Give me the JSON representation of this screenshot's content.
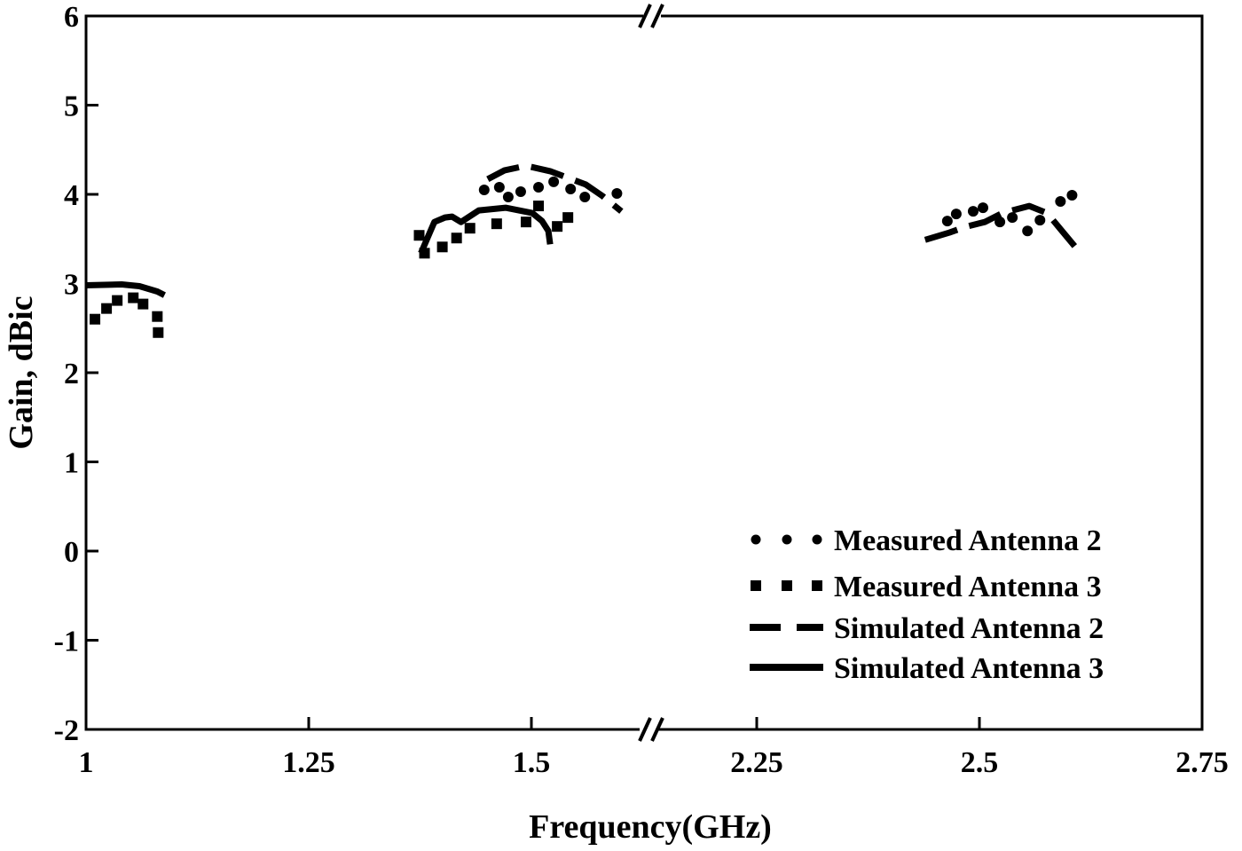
{
  "chart_data": {
    "type": "line",
    "title": "",
    "xlabel": "Frequency(GHz)",
    "ylabel": "Gain, dBic",
    "ylim": [
      -2,
      6
    ],
    "yticks": [
      -2,
      -1,
      0,
      1,
      2,
      3,
      4,
      5,
      6
    ],
    "xticks": [
      1,
      1.25,
      1.5,
      2.25,
      2.5,
      2.75
    ],
    "x_axis_break": "between 1.5 and 2.25",
    "grid": false,
    "legend_placement": "bottom-right",
    "colors": {
      "all_series": "#000000"
    },
    "series": [
      {
        "name": "Measured Antenna 2",
        "style": "round-dotted",
        "points": [
          [
            1.447,
            4.05
          ],
          [
            1.464,
            4.08
          ],
          [
            1.474,
            3.97
          ],
          [
            1.488,
            4.03
          ],
          [
            1.508,
            4.08
          ],
          [
            1.525,
            4.14
          ],
          [
            1.544,
            4.06
          ],
          [
            1.56,
            3.97
          ],
          [
            1.596,
            4.01
          ],
          [
            2.464,
            3.7
          ],
          [
            2.474,
            3.78
          ],
          [
            2.493,
            3.81
          ],
          [
            2.504,
            3.85
          ],
          [
            2.523,
            3.69
          ],
          [
            2.537,
            3.74
          ],
          [
            2.554,
            3.59
          ],
          [
            2.568,
            3.71
          ],
          [
            2.591,
            3.92
          ],
          [
            2.604,
            3.99
          ]
        ]
      },
      {
        "name": "Measured Antenna 3",
        "style": "square-dotted",
        "points": [
          [
            1.01,
            2.6
          ],
          [
            1.023,
            2.72
          ],
          [
            1.035,
            2.81
          ],
          [
            1.053,
            2.84
          ],
          [
            1.064,
            2.77
          ],
          [
            1.08,
            2.63
          ],
          [
            1.081,
            2.45
          ],
          [
            1.374,
            3.54
          ],
          [
            1.38,
            3.34
          ],
          [
            1.4,
            3.41
          ],
          [
            1.416,
            3.51
          ],
          [
            1.431,
            3.62
          ],
          [
            1.461,
            3.67
          ],
          [
            1.494,
            3.69
          ],
          [
            1.508,
            3.87
          ],
          [
            1.529,
            3.64
          ],
          [
            1.541,
            3.74
          ]
        ]
      },
      {
        "name": "Simulated Antenna 2",
        "style": "dashed",
        "segments": [
          [
            [
              1.451,
              4.17
            ],
            [
              1.47,
              4.27
            ],
            [
              1.494,
              4.32
            ],
            [
              1.521,
              4.26
            ],
            [
              1.561,
              4.11
            ],
            [
              1.58,
              3.98
            ],
            [
              1.601,
              3.81
            ]
          ],
          [
            [
              2.439,
              3.49
            ],
            [
              2.466,
              3.57
            ],
            [
              2.486,
              3.64
            ],
            [
              2.506,
              3.69
            ],
            [
              2.526,
              3.79
            ],
            [
              2.556,
              3.87
            ],
            [
              2.576,
              3.79
            ],
            [
              2.591,
              3.61
            ],
            [
              2.611,
              3.37
            ]
          ]
        ]
      },
      {
        "name": "Simulated Antenna 3",
        "style": "solid",
        "segments": [
          [
            [
              1.0,
              2.98
            ],
            [
              1.04,
              2.99
            ],
            [
              1.06,
              2.97
            ],
            [
              1.08,
              2.91
            ],
            [
              1.088,
              2.87
            ]
          ],
          [
            [
              1.376,
              3.34
            ],
            [
              1.391,
              3.69
            ],
            [
              1.403,
              3.74
            ],
            [
              1.411,
              3.75
            ],
            [
              1.421,
              3.69
            ],
            [
              1.441,
              3.82
            ],
            [
              1.471,
              3.85
            ],
            [
              1.501,
              3.79
            ],
            [
              1.512,
              3.7
            ],
            [
              1.519,
              3.59
            ],
            [
              1.521,
              3.44
            ]
          ]
        ]
      }
    ]
  }
}
